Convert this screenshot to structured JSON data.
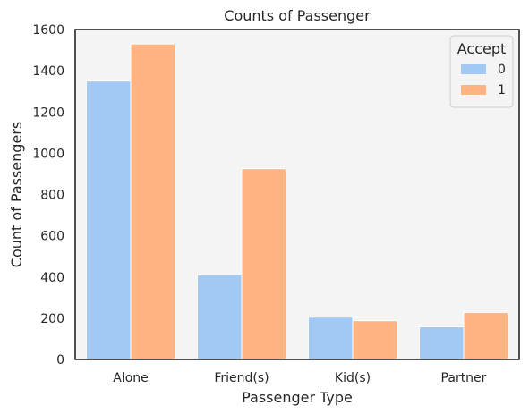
{
  "chart_data": {
    "type": "bar",
    "title": "Counts of Passenger",
    "xlabel": "Passenger Type",
    "ylabel": "Count of Passengers",
    "categories": [
      "Alone",
      "Friend(s)",
      "Kid(s)",
      "Partner"
    ],
    "yticks": [
      "0",
      "200",
      "400",
      "600",
      "800",
      "1000",
      "1200",
      "1400",
      "1600"
    ],
    "ylim": [
      0,
      1600
    ],
    "grid": false,
    "legend": {
      "title": "Accept",
      "placement": "top-right"
    },
    "series": [
      {
        "name": "0",
        "color": "#a1c9f4",
        "values": [
          1350,
          410,
          205,
          158
        ]
      },
      {
        "name": "1",
        "color": "#ffb482",
        "values": [
          1530,
          925,
          188,
          228
        ]
      }
    ]
  }
}
